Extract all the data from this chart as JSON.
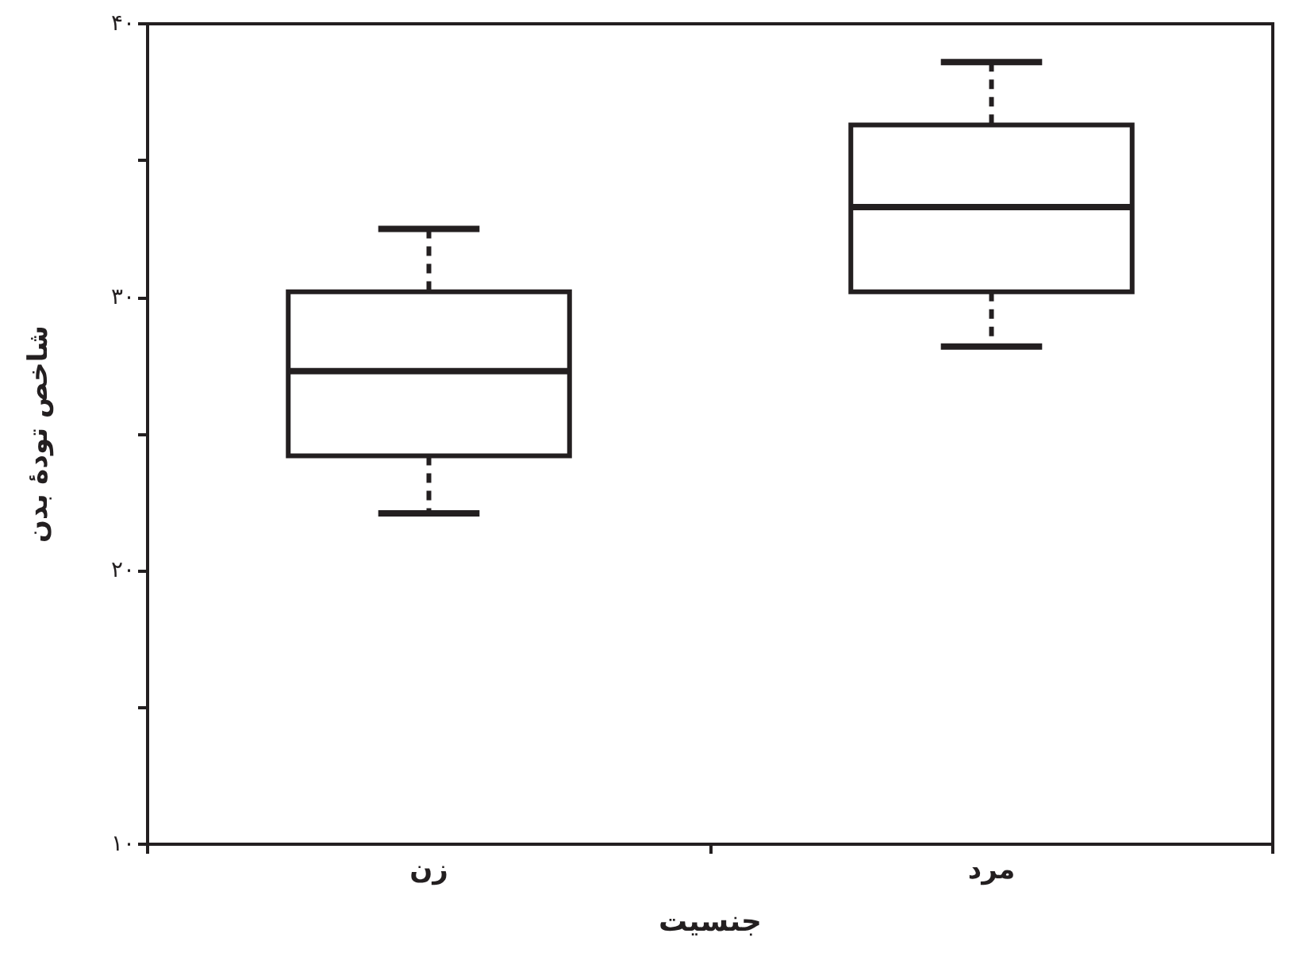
{
  "chart_data": {
    "type": "box",
    "xlabel": "جنسیت",
    "ylabel": "شاخص تودهٔ بدن",
    "categories": [
      "زن",
      "مرد"
    ],
    "boxes": [
      {
        "low": 22.1,
        "q1": 24.2,
        "median": 27.3,
        "q3": 30.2,
        "high": 32.5
      },
      {
        "low": 28.2,
        "q1": 30.2,
        "median": 33.3,
        "q3": 36.3,
        "high": 38.6
      }
    ],
    "color": "#231f20",
    "ylim": [
      10,
      40
    ],
    "yticks": [
      {
        "value": 10,
        "label": "۱۰"
      },
      {
        "value": 15,
        "label": null
      },
      {
        "value": 20,
        "label": "۲۰"
      },
      {
        "value": 25,
        "label": null
      },
      {
        "value": 30,
        "label": "۳۰"
      },
      {
        "value": 35,
        "label": null
      },
      {
        "value": 40,
        "label": "۴۰"
      }
    ],
    "grid": false
  }
}
